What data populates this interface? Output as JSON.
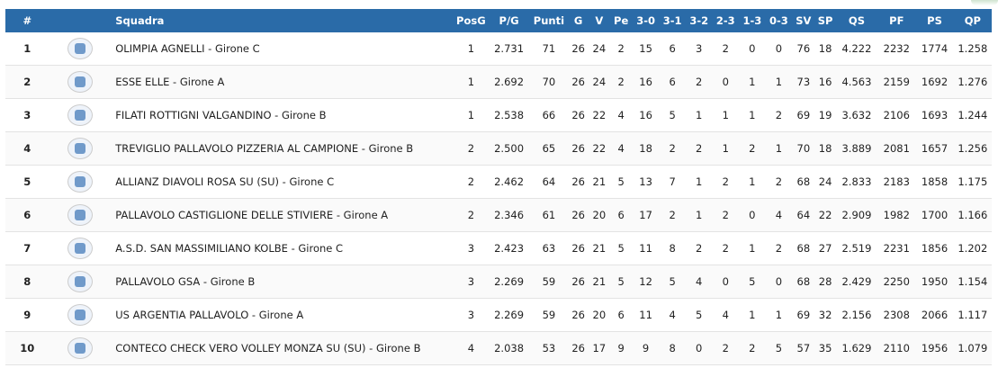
{
  "columns": {
    "rank": "#",
    "logo": "",
    "team": "Squadra",
    "posg": "PosG",
    "pg": "P/G",
    "punti": "Punti",
    "g": "G",
    "v": "V",
    "pe": "Pe",
    "w30": "3-0",
    "w31": "3-1",
    "w32": "3-2",
    "l23": "2-3",
    "l13": "1-3",
    "l03": "0-3",
    "sv": "SV",
    "sp": "SP",
    "qs": "QS",
    "pf": "PF",
    "ps": "PS",
    "qp": "QP"
  },
  "rows": [
    {
      "rank": "1",
      "team": "OLIMPIA AGNELLI - Girone C",
      "posg": "1",
      "pg": "2.731",
      "punti": "71",
      "g": "26",
      "v": "24",
      "pe": "2",
      "w30": "15",
      "w31": "6",
      "w32": "3",
      "l23": "2",
      "l13": "0",
      "l03": "0",
      "sv": "76",
      "sp": "18",
      "qs": "4.222",
      "pf": "2232",
      "ps": "1774",
      "qp": "1.258"
    },
    {
      "rank": "2",
      "team": "ESSE ELLE - Girone A",
      "posg": "1",
      "pg": "2.692",
      "punti": "70",
      "g": "26",
      "v": "24",
      "pe": "2",
      "w30": "16",
      "w31": "6",
      "w32": "2",
      "l23": "0",
      "l13": "1",
      "l03": "1",
      "sv": "73",
      "sp": "16",
      "qs": "4.563",
      "pf": "2159",
      "ps": "1692",
      "qp": "1.276"
    },
    {
      "rank": "3",
      "team": "FILATI ROTTIGNI VALGANDINO - Girone B",
      "posg": "1",
      "pg": "2.538",
      "punti": "66",
      "g": "26",
      "v": "22",
      "pe": "4",
      "w30": "16",
      "w31": "5",
      "w32": "1",
      "l23": "1",
      "l13": "1",
      "l03": "2",
      "sv": "69",
      "sp": "19",
      "qs": "3.632",
      "pf": "2106",
      "ps": "1693",
      "qp": "1.244"
    },
    {
      "rank": "4",
      "team": "TREVIGLIO PALLAVOLO PIZZERIA AL CAMPIONE - Girone B",
      "posg": "2",
      "pg": "2.500",
      "punti": "65",
      "g": "26",
      "v": "22",
      "pe": "4",
      "w30": "18",
      "w31": "2",
      "w32": "2",
      "l23": "1",
      "l13": "2",
      "l03": "1",
      "sv": "70",
      "sp": "18",
      "qs": "3.889",
      "pf": "2081",
      "ps": "1657",
      "qp": "1.256"
    },
    {
      "rank": "5",
      "team": "ALLIANZ DIAVOLI ROSA SU (SU) - Girone C",
      "posg": "2",
      "pg": "2.462",
      "punti": "64",
      "g": "26",
      "v": "21",
      "pe": "5",
      "w30": "13",
      "w31": "7",
      "w32": "1",
      "l23": "2",
      "l13": "1",
      "l03": "2",
      "sv": "68",
      "sp": "24",
      "qs": "2.833",
      "pf": "2183",
      "ps": "1858",
      "qp": "1.175"
    },
    {
      "rank": "6",
      "team": "PALLAVOLO CASTIGLIONE DELLE STIVIERE - Girone A",
      "posg": "2",
      "pg": "2.346",
      "punti": "61",
      "g": "26",
      "v": "20",
      "pe": "6",
      "w30": "17",
      "w31": "2",
      "w32": "1",
      "l23": "2",
      "l13": "0",
      "l03": "4",
      "sv": "64",
      "sp": "22",
      "qs": "2.909",
      "pf": "1982",
      "ps": "1700",
      "qp": "1.166"
    },
    {
      "rank": "7",
      "team": "A.S.D. SAN MASSIMILIANO KOLBE - Girone C",
      "posg": "3",
      "pg": "2.423",
      "punti": "63",
      "g": "26",
      "v": "21",
      "pe": "5",
      "w30": "11",
      "w31": "8",
      "w32": "2",
      "l23": "2",
      "l13": "1",
      "l03": "2",
      "sv": "68",
      "sp": "27",
      "qs": "2.519",
      "pf": "2231",
      "ps": "1856",
      "qp": "1.202"
    },
    {
      "rank": "8",
      "team": "PALLAVOLO GSA - Girone B",
      "posg": "3",
      "pg": "2.269",
      "punti": "59",
      "g": "26",
      "v": "21",
      "pe": "5",
      "w30": "12",
      "w31": "5",
      "w32": "4",
      "l23": "0",
      "l13": "5",
      "l03": "0",
      "sv": "68",
      "sp": "28",
      "qs": "2.429",
      "pf": "2250",
      "ps": "1950",
      "qp": "1.154"
    },
    {
      "rank": "9",
      "team": "US ARGENTIA PALLAVOLO - Girone A",
      "posg": "3",
      "pg": "2.269",
      "punti": "59",
      "g": "26",
      "v": "20",
      "pe": "6",
      "w30": "11",
      "w31": "4",
      "w32": "5",
      "l23": "4",
      "l13": "1",
      "l03": "1",
      "sv": "69",
      "sp": "32",
      "qs": "2.156",
      "pf": "2308",
      "ps": "2066",
      "qp": "1.117"
    },
    {
      "rank": "10",
      "team": "CONTECO CHECK VERO VOLLEY MONZA SU (SU) - Girone B",
      "posg": "4",
      "pg": "2.038",
      "punti": "53",
      "g": "26",
      "v": "17",
      "pe": "9",
      "w30": "9",
      "w31": "8",
      "w32": "0",
      "l23": "2",
      "l13": "2",
      "l03": "5",
      "sv": "57",
      "sp": "35",
      "qs": "1.629",
      "pf": "2110",
      "ps": "1956",
      "qp": "1.079"
    }
  ]
}
